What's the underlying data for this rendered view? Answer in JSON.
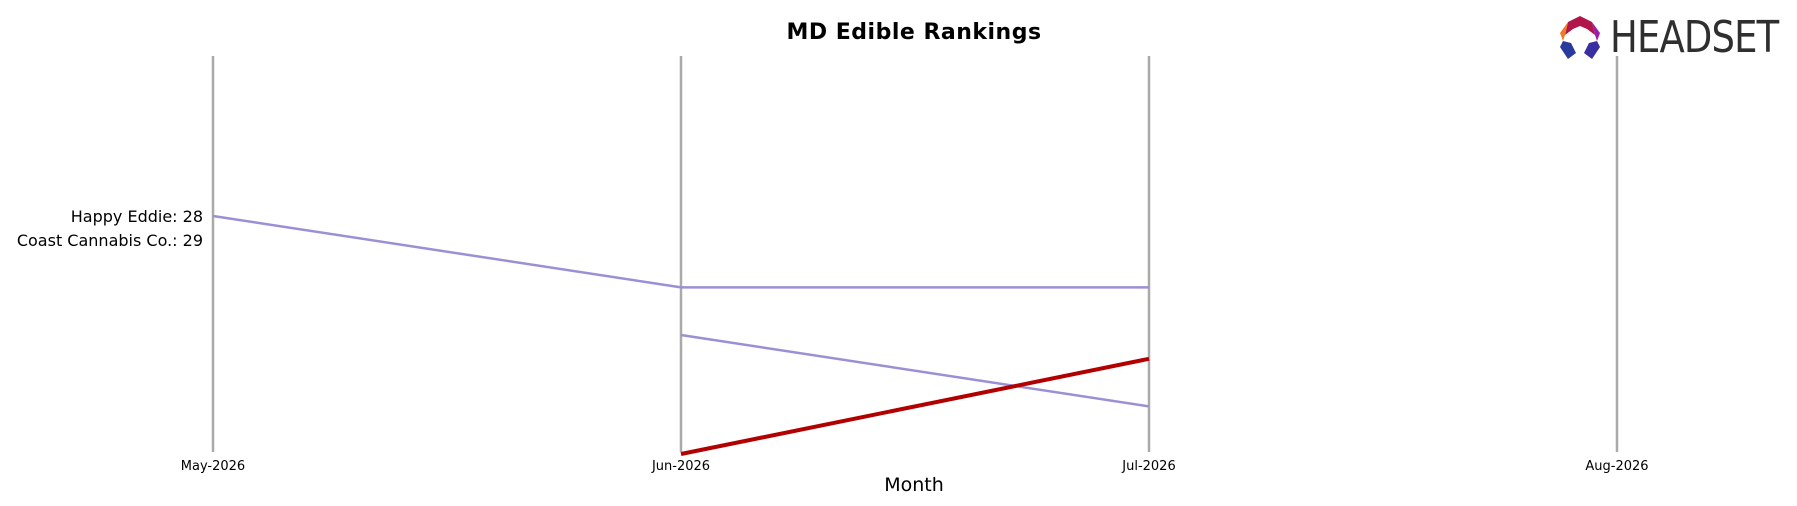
{
  "chart_data": {
    "type": "line",
    "title": "MD Edible Rankings",
    "xlabel": "Month",
    "ylabel": "",
    "x": [
      "May-2026",
      "Jun-2026",
      "Jul-2026",
      "Aug-2026"
    ],
    "y_inverted": true,
    "ylim": [
      26,
      35
    ],
    "grid": false,
    "start_labels": [
      "Happy Eddie: 28",
      "Coast Cannabis Co.: 29"
    ],
    "series": [
      {
        "name": "Happy Eddie",
        "color": "#9b8fd6",
        "highlight": false,
        "values": [
          28,
          31,
          null,
          null
        ]
      },
      {
        "name": "",
        "color": "#9b8fd6",
        "highlight": false,
        "values": [
          null,
          31,
          31,
          null
        ]
      },
      {
        "name": "",
        "color": "#9b8fd6",
        "highlight": false,
        "values": [
          null,
          33,
          36,
          null
        ]
      },
      {
        "name": "Coast Cannabis Co.",
        "color": "#b20000",
        "highlight": true,
        "values": [
          null,
          38,
          34,
          null
        ]
      }
    ]
  },
  "logo": {
    "text": "HEADSET"
  },
  "colors": {
    "axis_line": "#aaaaaa",
    "series_default": "#9b8fd6",
    "highlight": "#b20000"
  }
}
